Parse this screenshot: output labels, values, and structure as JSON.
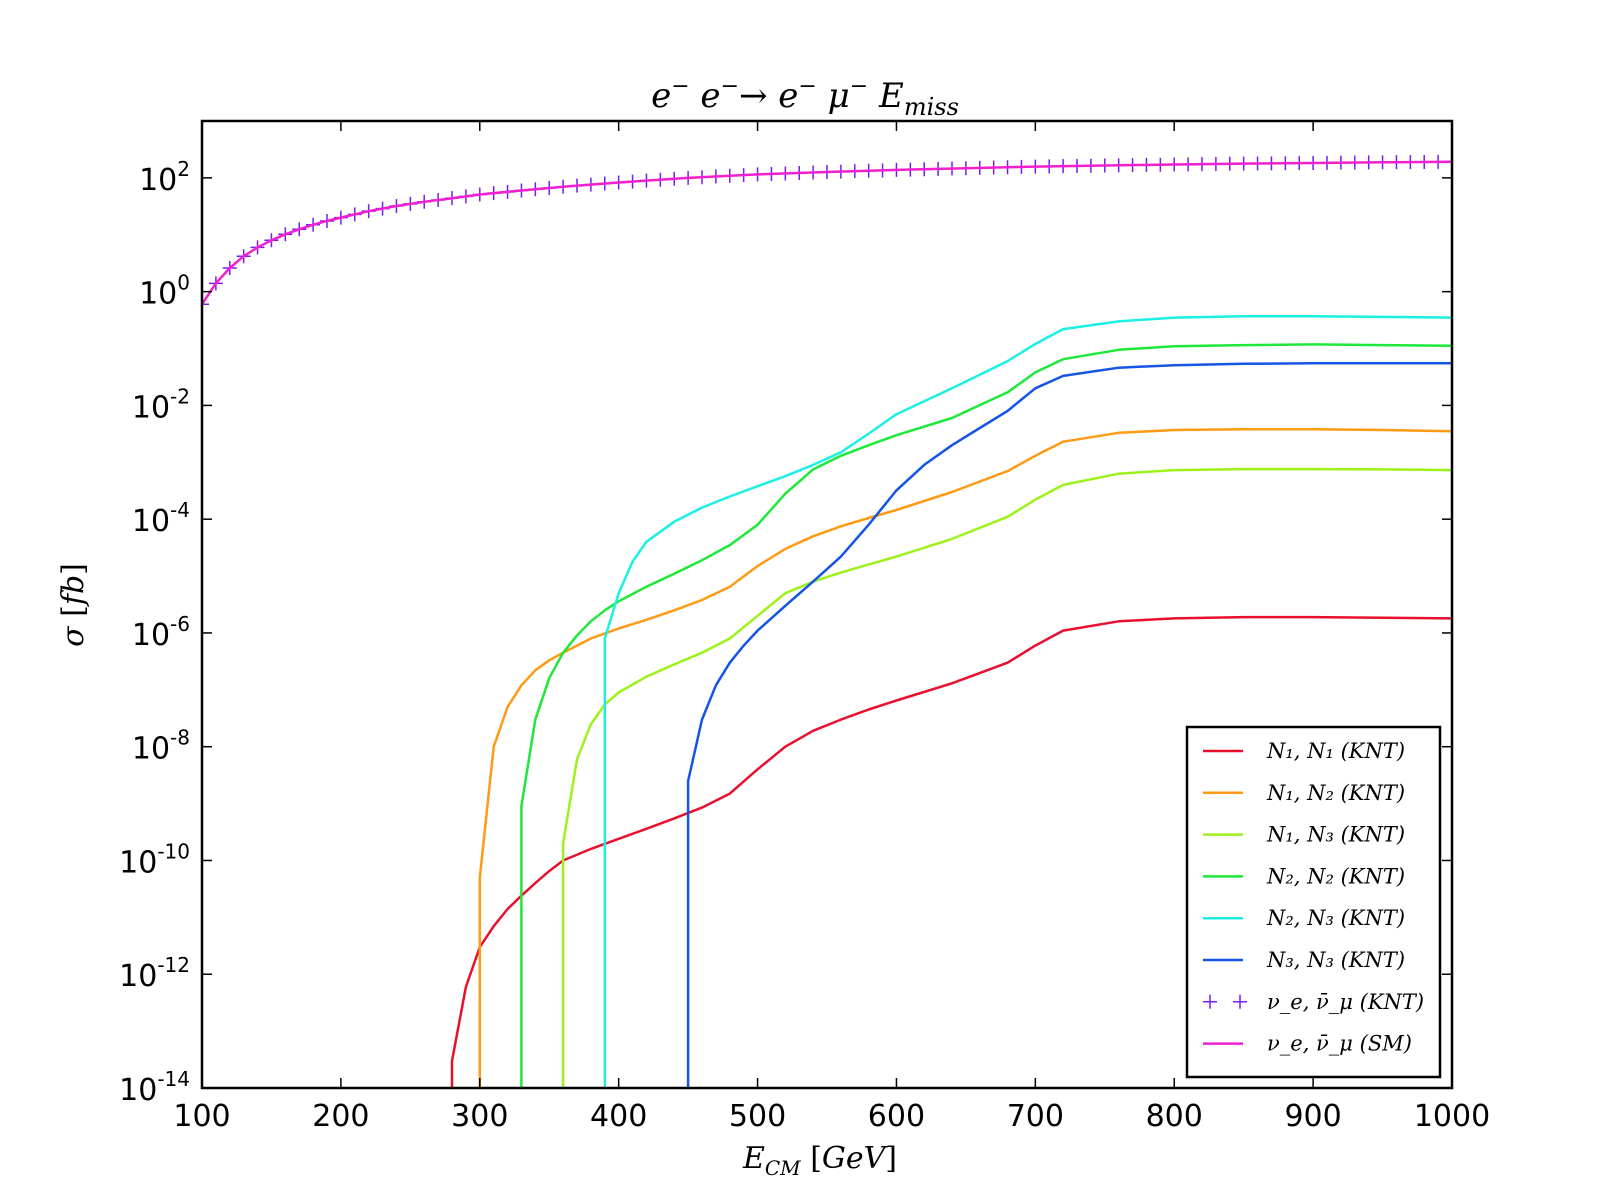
{
  "chart_data": {
    "type": "line",
    "title": "e⁻ e⁻→ e⁻ μ⁻ E_miss",
    "xlabel": "E_CM [GeV]",
    "ylabel": "σ [fb]",
    "xlim": [
      100,
      1000
    ],
    "ylim": [
      1e-14,
      1000
    ],
    "yscale": "log",
    "legend": "bottom-right",
    "grid": false,
    "xticks": [
      "100",
      "200",
      "300",
      "400",
      "500",
      "600",
      "700",
      "800",
      "900",
      "1000"
    ],
    "yticks": [
      {
        "base": "10",
        "exp": "-14",
        "value": 1e-14
      },
      {
        "base": "10",
        "exp": "-12",
        "value": 1e-12
      },
      {
        "base": "10",
        "exp": "-10",
        "value": 1e-10
      },
      {
        "base": "10",
        "exp": "-8",
        "value": 1e-08
      },
      {
        "base": "10",
        "exp": "-6",
        "value": 1e-06
      },
      {
        "base": "10",
        "exp": "-4",
        "value": 0.0001
      },
      {
        "base": "10",
        "exp": "-2",
        "value": 0.01
      },
      {
        "base": "10",
        "exp": "0",
        "value": 1
      },
      {
        "base": "10",
        "exp": "2",
        "value": 100
      }
    ],
    "series": [
      {
        "name": "N₁, N₁ (KNT)",
        "color": "#e8102e",
        "style": "line",
        "x": [
          280,
          280,
          290,
          300,
          310,
          320,
          330,
          340,
          350,
          360,
          380,
          400,
          420,
          440,
          460,
          480,
          500,
          520,
          540,
          560,
          580,
          600,
          640,
          680,
          700,
          720,
          760,
          800,
          850,
          900,
          950,
          1000
        ],
        "y": [
          1e-14,
          3e-14,
          6e-13,
          3e-12,
          7e-12,
          1.4e-11,
          2.4e-11,
          4e-11,
          6.5e-11,
          1e-10,
          1.6e-10,
          2.4e-10,
          3.6e-10,
          5.5e-10,
          8.5e-10,
          1.5e-09,
          4e-09,
          1e-08,
          1.9e-08,
          3e-08,
          4.5e-08,
          6.5e-08,
          1.3e-07,
          3e-07,
          6e-07,
          1.1e-06,
          1.6e-06,
          1.8e-06,
          1.9e-06,
          1.9e-06,
          1.85e-06,
          1.8e-06
        ]
      },
      {
        "name": "N₁, N₂ (KNT)",
        "color": "#ff9a14",
        "style": "line",
        "x": [
          300,
          300,
          310,
          320,
          330,
          340,
          350,
          360,
          380,
          400,
          420,
          440,
          460,
          480,
          500,
          520,
          540,
          560,
          580,
          600,
          640,
          680,
          700,
          720,
          760,
          800,
          850,
          900,
          950,
          1000
        ],
        "y": [
          1e-14,
          5e-11,
          1e-08,
          5e-08,
          1.2e-07,
          2.2e-07,
          3.3e-07,
          4.5e-07,
          8e-07,
          1.2e-06,
          1.7e-06,
          2.5e-06,
          3.8e-06,
          6.5e-06,
          1.5e-05,
          3e-05,
          5e-05,
          7.5e-05,
          0.000105,
          0.000145,
          0.0003,
          0.0007,
          0.0013,
          0.0023,
          0.0033,
          0.0037,
          0.0038,
          0.0038,
          0.0037,
          0.0035
        ]
      },
      {
        "name": "N₁, N₃ (KNT)",
        "color": "#9df21c",
        "style": "line",
        "x": [
          360,
          360,
          370,
          380,
          390,
          400,
          420,
          440,
          460,
          480,
          500,
          520,
          540,
          560,
          580,
          600,
          640,
          680,
          700,
          720,
          760,
          800,
          850,
          900,
          950,
          1000
        ],
        "y": [
          1e-14,
          2e-10,
          6e-09,
          2.5e-08,
          5.5e-08,
          9e-08,
          1.7e-07,
          2.8e-07,
          4.5e-07,
          8e-07,
          2e-06,
          5e-06,
          8e-06,
          1.15e-05,
          1.6e-05,
          2.2e-05,
          4.5e-05,
          0.00011,
          0.00022,
          0.0004,
          0.00063,
          0.00073,
          0.00076,
          0.00076,
          0.00075,
          0.00073
        ]
      },
      {
        "name": "N₂, N₂ (KNT)",
        "color": "#1ee83a",
        "style": "line",
        "x": [
          330,
          330,
          340,
          350,
          360,
          370,
          380,
          390,
          400,
          420,
          440,
          460,
          480,
          500,
          520,
          540,
          560,
          580,
          600,
          640,
          680,
          700,
          720,
          760,
          800,
          850,
          900,
          950,
          1000
        ],
        "y": [
          1e-14,
          9e-10,
          3e-08,
          1.6e-07,
          4.5e-07,
          9e-07,
          1.6e-06,
          2.5e-06,
          3.6e-06,
          6.5e-06,
          1.1e-05,
          1.9e-05,
          3.5e-05,
          8e-05,
          0.00028,
          0.00075,
          0.0013,
          0.002,
          0.003,
          0.006,
          0.017,
          0.038,
          0.065,
          0.095,
          0.11,
          0.115,
          0.118,
          0.115,
          0.112
        ]
      },
      {
        "name": "N₂, N₃ (KNT)",
        "color": "#1cf0e2",
        "style": "line",
        "x": [
          390,
          390,
          400,
          410,
          420,
          440,
          460,
          480,
          500,
          520,
          540,
          560,
          580,
          600,
          640,
          680,
          700,
          720,
          760,
          800,
          850,
          900,
          950,
          1000
        ],
        "y": [
          1e-14,
          8e-07,
          5e-06,
          1.8e-05,
          4e-05,
          9e-05,
          0.00016,
          0.00025,
          0.00038,
          0.00057,
          0.0009,
          0.0015,
          0.0032,
          0.007,
          0.02,
          0.06,
          0.12,
          0.22,
          0.3,
          0.35,
          0.37,
          0.37,
          0.36,
          0.35
        ]
      },
      {
        "name": "N₃, N₃ (KNT)",
        "color": "#1455e6",
        "style": "line",
        "x": [
          450,
          450,
          460,
          470,
          480,
          490,
          500,
          520,
          540,
          560,
          580,
          600,
          620,
          640,
          660,
          680,
          700,
          720,
          760,
          800,
          850,
          900,
          950,
          1000
        ],
        "y": [
          1e-14,
          2.5e-09,
          3e-08,
          1.2e-07,
          3e-07,
          6e-07,
          1.1e-06,
          3e-06,
          8e-06,
          2.2e-05,
          8e-05,
          0.00032,
          0.0009,
          0.002,
          0.004,
          0.008,
          0.02,
          0.033,
          0.046,
          0.051,
          0.054,
          0.055,
          0.055,
          0.055
        ]
      },
      {
        "name": "ν_e, ν̄_μ (KNT)",
        "color": "#7a1cf0",
        "style": "markers",
        "x": [
          100,
          110,
          120,
          130,
          140,
          150,
          160,
          170,
          180,
          190,
          200,
          220,
          240,
          260,
          280,
          300,
          330,
          360,
          400,
          450,
          500,
          550,
          600,
          650,
          700,
          750,
          800,
          850,
          900,
          950,
          1000
        ],
        "y": [
          0.6,
          1.4,
          2.6,
          4.2,
          6.0,
          8.0,
          10.2,
          12.5,
          15,
          17.5,
          20,
          26,
          32,
          38,
          44,
          51,
          60,
          70,
          83,
          100,
          115,
          127,
          138,
          148,
          158,
          165,
          172,
          178,
          183,
          188,
          192
        ]
      },
      {
        "name": "ν_e, ν̄_μ (SM)",
        "color": "#f020d0",
        "style": "line",
        "x": [
          100,
          110,
          120,
          130,
          140,
          150,
          160,
          170,
          180,
          190,
          200,
          220,
          240,
          260,
          280,
          300,
          330,
          360,
          400,
          450,
          500,
          550,
          600,
          650,
          700,
          750,
          800,
          850,
          900,
          950,
          1000
        ],
        "y": [
          0.6,
          1.4,
          2.6,
          4.2,
          6.0,
          8.0,
          10.2,
          12.5,
          15,
          17.5,
          20,
          26,
          32,
          38,
          44,
          51,
          60,
          70,
          83,
          100,
          115,
          127,
          138,
          148,
          158,
          165,
          172,
          178,
          183,
          188,
          192
        ]
      }
    ]
  }
}
